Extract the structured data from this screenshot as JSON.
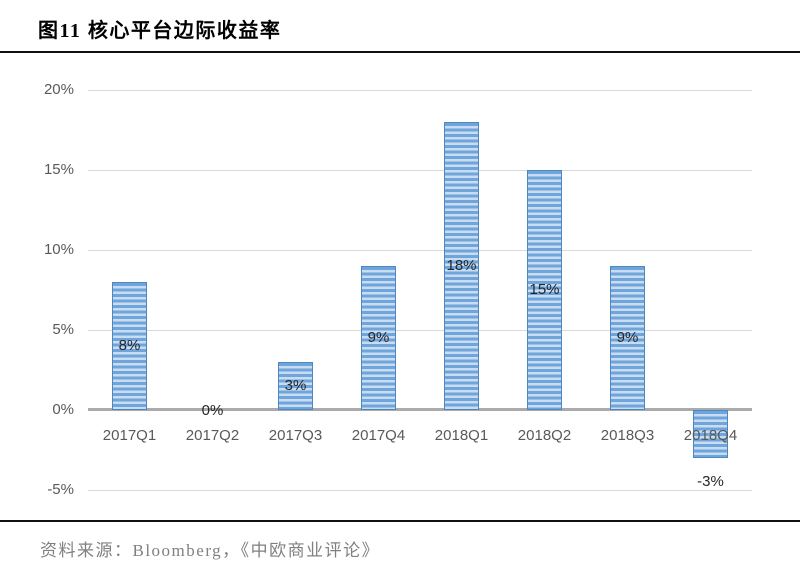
{
  "figure": {
    "title": "图11  核心平台边际收益率",
    "source": "资料来源：Bloomberg，《中欧商业评论》"
  },
  "chart_data": {
    "type": "bar",
    "title": "图11 核心平台边际收益率",
    "categories": [
      "2017Q1",
      "2017Q2",
      "2017Q3",
      "2017Q4",
      "2018Q1",
      "2018Q2",
      "2018Q3",
      "2018Q4"
    ],
    "values": [
      8,
      0,
      3,
      9,
      18,
      15,
      9,
      -3
    ],
    "data_labels": [
      "8%",
      "0%",
      "3%",
      "9%",
      "18%",
      "15%",
      "9%",
      "-3%"
    ],
    "xlabel": "",
    "ylabel": "",
    "ylim": [
      -5,
      20
    ],
    "ytick_values": [
      20,
      15,
      10,
      5,
      0,
      -5
    ],
    "ytick_labels": [
      "20%",
      "15%",
      "10%",
      "5%",
      "0%",
      "-5%"
    ],
    "grid": true,
    "legend": false,
    "colors": {
      "bar_stripe_dark": "#6FA4DC",
      "bar_stripe_light": "#C9DDF0",
      "bar_border": "#4E86C0",
      "gridline": "#D9D9D9",
      "axis_line": "#ABABAB",
      "tick_text": "#595959",
      "data_label_text": "#262626"
    }
  }
}
